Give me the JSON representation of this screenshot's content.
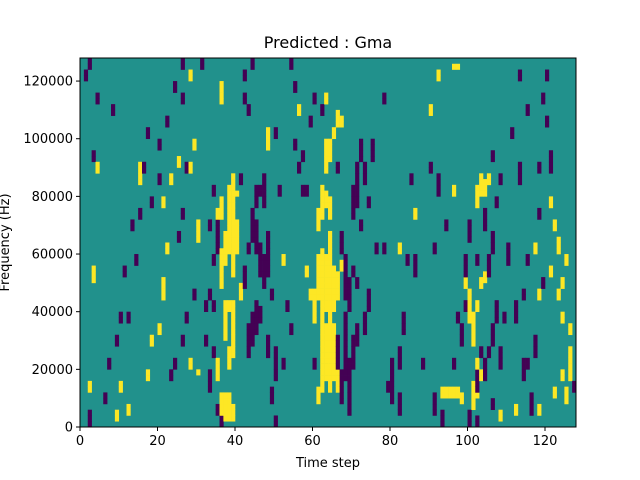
{
  "chart_data": {
    "type": "heatmap",
    "title": "Predicted : Gma",
    "xlabel": "Time step",
    "ylabel": "Frequency (Hz)",
    "xlim": [
      0,
      128
    ],
    "ylim": [
      0,
      128000
    ],
    "xticks": [
      0,
      20,
      40,
      60,
      80,
      100,
      120
    ],
    "yticks": [
      0,
      20000,
      40000,
      60000,
      80000,
      100000,
      120000
    ],
    "grid": false,
    "n_time_steps": 128,
    "n_freq_bins": 64,
    "bin_hz": 2000,
    "levels": {
      "low": -1,
      "mid": 0,
      "high": 1
    },
    "colors": {
      "low": "#440154",
      "mid": "#21918c",
      "high": "#fde725"
    },
    "high_cells": [
      [
        36,
        1,
        6
      ],
      [
        37,
        1,
        6
      ],
      [
        38,
        1,
        6
      ],
      [
        39,
        1,
        4
      ],
      [
        35,
        8,
        12
      ],
      [
        38,
        10,
        14
      ],
      [
        39,
        12,
        22
      ],
      [
        37,
        15,
        22
      ],
      [
        38,
        20,
        22
      ],
      [
        36,
        24,
        31
      ],
      [
        37,
        28,
        34
      ],
      [
        38,
        30,
        39
      ],
      [
        39,
        26,
        38
      ],
      [
        40,
        30,
        36
      ],
      [
        36,
        36,
        40
      ],
      [
        35,
        35,
        38
      ],
      [
        38,
        38,
        42
      ],
      [
        39,
        38,
        44
      ],
      [
        40,
        40,
        41
      ],
      [
        41,
        22,
        25
      ],
      [
        30,
        32,
        36
      ],
      [
        30,
        9,
        10
      ],
      [
        61,
        4,
        7
      ],
      [
        62,
        6,
        20
      ],
      [
        63,
        8,
        18
      ],
      [
        64,
        6,
        21
      ],
      [
        65,
        8,
        18
      ],
      [
        66,
        6,
        10
      ],
      [
        62,
        18,
        31
      ],
      [
        63,
        20,
        30
      ],
      [
        64,
        18,
        34
      ],
      [
        65,
        20,
        28
      ],
      [
        66,
        22,
        27
      ],
      [
        67,
        27,
        29
      ],
      [
        61,
        22,
        30
      ],
      [
        60,
        18,
        24
      ],
      [
        61,
        34,
        38
      ],
      [
        62,
        36,
        42
      ],
      [
        63,
        38,
        41
      ],
      [
        64,
        36,
        40
      ],
      [
        63,
        44,
        50
      ],
      [
        64,
        46,
        50
      ],
      [
        65,
        50,
        52
      ],
      [
        66,
        52,
        55
      ],
      [
        67,
        52,
        54
      ],
      [
        58,
        26,
        28
      ],
      [
        59,
        22,
        24
      ],
      [
        52,
        28,
        30
      ],
      [
        101,
        3,
        8
      ],
      [
        102,
        5,
        12
      ],
      [
        103,
        8,
        10
      ],
      [
        101,
        14,
        20
      ],
      [
        100,
        18,
        24
      ],
      [
        102,
        20,
        22
      ],
      [
        103,
        24,
        26
      ],
      [
        104,
        25,
        27
      ],
      [
        103,
        40,
        44
      ],
      [
        104,
        40,
        43
      ],
      [
        105,
        42,
        44
      ],
      [
        102,
        38,
        42
      ],
      [
        93,
        5,
        7
      ],
      [
        94,
        5,
        7
      ],
      [
        95,
        5,
        7
      ],
      [
        96,
        5,
        7
      ],
      [
        97,
        5,
        7
      ],
      [
        98,
        4,
        6
      ],
      [
        20,
        16,
        18
      ],
      [
        21,
        22,
        26
      ],
      [
        22,
        30,
        32
      ],
      [
        21,
        38,
        40
      ],
      [
        23,
        42,
        44
      ],
      [
        25,
        45,
        47
      ],
      [
        28,
        44,
        46
      ],
      [
        29,
        48,
        50
      ],
      [
        15,
        42,
        44
      ],
      [
        15,
        44,
        46
      ],
      [
        18,
        14,
        16
      ],
      [
        28,
        10,
        12
      ],
      [
        44,
        36,
        38
      ],
      [
        17,
        8,
        10
      ],
      [
        28,
        60,
        62
      ],
      [
        12,
        2,
        4
      ],
      [
        9,
        1,
        3
      ],
      [
        4,
        44,
        46
      ],
      [
        3,
        25,
        28
      ],
      [
        2,
        6,
        8
      ],
      [
        10,
        6,
        8
      ],
      [
        36,
        56,
        60
      ],
      [
        48,
        48,
        52
      ],
      [
        56,
        54,
        56
      ],
      [
        63,
        56,
        58
      ],
      [
        82,
        30,
        32
      ],
      [
        86,
        36,
        38
      ],
      [
        108,
        1,
        3
      ],
      [
        112,
        2,
        4
      ],
      [
        118,
        2,
        4
      ],
      [
        122,
        5,
        7
      ],
      [
        124,
        18,
        20
      ],
      [
        118,
        22,
        24
      ],
      [
        123,
        22,
        24
      ],
      [
        124,
        24,
        26
      ],
      [
        121,
        26,
        28
      ],
      [
        121,
        38,
        40
      ],
      [
        117,
        30,
        32
      ],
      [
        123,
        30,
        33
      ],
      [
        122,
        34,
        36
      ],
      [
        124,
        8,
        10
      ],
      [
        125,
        4,
        7
      ],
      [
        126,
        8,
        14
      ],
      [
        110,
        30,
        32
      ],
      [
        99,
        24,
        26
      ],
      [
        96,
        40,
        42
      ],
      [
        90,
        54,
        56
      ],
      [
        92,
        60,
        62
      ],
      [
        96,
        62,
        63
      ],
      [
        97,
        62,
        63
      ],
      [
        126,
        16,
        18
      ],
      [
        125,
        28,
        30
      ]
    ],
    "low_cells": [
      [
        43,
        12,
        18
      ],
      [
        44,
        14,
        20
      ],
      [
        45,
        16,
        22
      ],
      [
        46,
        18,
        21
      ],
      [
        46,
        26,
        32
      ],
      [
        47,
        24,
        30
      ],
      [
        48,
        26,
        34
      ],
      [
        45,
        30,
        36
      ],
      [
        44,
        32,
        38
      ],
      [
        45,
        38,
        42
      ],
      [
        47,
        38,
        44
      ],
      [
        46,
        40,
        42
      ],
      [
        42,
        24,
        28
      ],
      [
        43,
        30,
        32
      ],
      [
        41,
        42,
        44
      ],
      [
        50,
        8,
        14
      ],
      [
        49,
        22,
        24
      ],
      [
        48,
        12,
        16
      ],
      [
        49,
        4,
        7
      ],
      [
        51,
        40,
        42
      ],
      [
        35,
        30,
        36
      ],
      [
        33,
        6,
        10
      ],
      [
        34,
        12,
        14
      ],
      [
        32,
        14,
        16
      ],
      [
        33,
        22,
        24
      ],
      [
        34,
        20,
        22
      ],
      [
        34,
        28,
        30
      ],
      [
        33,
        34,
        36
      ],
      [
        66,
        10,
        16
      ],
      [
        67,
        4,
        10
      ],
      [
        68,
        8,
        20
      ],
      [
        69,
        2,
        12
      ],
      [
        70,
        10,
        16
      ],
      [
        71,
        14,
        18
      ],
      [
        68,
        22,
        30
      ],
      [
        69,
        20,
        26
      ],
      [
        67,
        30,
        34
      ],
      [
        70,
        36,
        42
      ],
      [
        71,
        38,
        46
      ],
      [
        72,
        34,
        36
      ],
      [
        70,
        26,
        28
      ],
      [
        72,
        46,
        50
      ],
      [
        71,
        24,
        26
      ],
      [
        73,
        16,
        20
      ],
      [
        74,
        20,
        24
      ],
      [
        73,
        42,
        46
      ],
      [
        75,
        46,
        50
      ],
      [
        74,
        38,
        40
      ],
      [
        76,
        30,
        32
      ],
      [
        78,
        30,
        32
      ],
      [
        79,
        6,
        8
      ],
      [
        80,
        4,
        12
      ],
      [
        82,
        2,
        6
      ],
      [
        82,
        10,
        14
      ],
      [
        83,
        16,
        20
      ],
      [
        84,
        28,
        30
      ],
      [
        85,
        42,
        44
      ],
      [
        86,
        26,
        30
      ],
      [
        88,
        10,
        12
      ],
      [
        91,
        30,
        32
      ],
      [
        91,
        2,
        6
      ],
      [
        94,
        34,
        36
      ],
      [
        96,
        10,
        12
      ],
      [
        97,
        18,
        20
      ],
      [
        98,
        14,
        18
      ],
      [
        99,
        20,
        22
      ],
      [
        99,
        26,
        30
      ],
      [
        100,
        32,
        36
      ],
      [
        102,
        6,
        10
      ],
      [
        104,
        8,
        12
      ],
      [
        105,
        12,
        14
      ],
      [
        106,
        14,
        18
      ],
      [
        107,
        18,
        22
      ],
      [
        108,
        10,
        14
      ],
      [
        109,
        18,
        20
      ],
      [
        110,
        28,
        32
      ],
      [
        105,
        26,
        30
      ],
      [
        106,
        30,
        34
      ],
      [
        104,
        34,
        38
      ],
      [
        103,
        12,
        14
      ],
      [
        102,
        28,
        30
      ],
      [
        107,
        38,
        40
      ],
      [
        108,
        42,
        44
      ],
      [
        106,
        46,
        48
      ],
      [
        100,
        0,
        3
      ],
      [
        102,
        0,
        2
      ],
      [
        116,
        2,
        6
      ],
      [
        114,
        8,
        12
      ],
      [
        115,
        10,
        12
      ],
      [
        117,
        12,
        16
      ],
      [
        112,
        18,
        22
      ],
      [
        114,
        22,
        24
      ],
      [
        115,
        28,
        30
      ],
      [
        119,
        24,
        26
      ],
      [
        118,
        36,
        38
      ],
      [
        118,
        44,
        46
      ],
      [
        121,
        44,
        48
      ],
      [
        120,
        52,
        54
      ],
      [
        120,
        60,
        62
      ],
      [
        119,
        56,
        58
      ],
      [
        113,
        60,
        62
      ],
      [
        115,
        54,
        56
      ],
      [
        111,
        50,
        52
      ],
      [
        113,
        42,
        46
      ],
      [
        127,
        6,
        8
      ],
      [
        106,
        3,
        5
      ],
      [
        93,
        0,
        3
      ],
      [
        92,
        40,
        44
      ],
      [
        90,
        44,
        46
      ],
      [
        78,
        56,
        58
      ],
      [
        66,
        44,
        46
      ],
      [
        58,
        40,
        42
      ],
      [
        57,
        46,
        48
      ],
      [
        55,
        48,
        50
      ],
      [
        50,
        50,
        52
      ],
      [
        42,
        56,
        58
      ],
      [
        42,
        60,
        62
      ],
      [
        43,
        54,
        56
      ],
      [
        44,
        62,
        64
      ],
      [
        54,
        62,
        64
      ],
      [
        55,
        58,
        60
      ],
      [
        29,
        22,
        24
      ],
      [
        27,
        18,
        20
      ],
      [
        26,
        14,
        16
      ],
      [
        24,
        10,
        12
      ],
      [
        23,
        8,
        10
      ],
      [
        25,
        32,
        34
      ],
      [
        26,
        36,
        38
      ],
      [
        27,
        44,
        46
      ],
      [
        26,
        56,
        58
      ],
      [
        20,
        48,
        50
      ],
      [
        18,
        38,
        40
      ],
      [
        15,
        36,
        38
      ],
      [
        13,
        34,
        36
      ],
      [
        11,
        26,
        28
      ],
      [
        10,
        18,
        20
      ],
      [
        9,
        14,
        16
      ],
      [
        7,
        10,
        12
      ],
      [
        6,
        4,
        6
      ],
      [
        2,
        0,
        3
      ],
      [
        8,
        54,
        56
      ],
      [
        1,
        60,
        62
      ],
      [
        2,
        62,
        64
      ],
      [
        4,
        56,
        58
      ],
      [
        3,
        46,
        48
      ],
      [
        12,
        18,
        20
      ],
      [
        14,
        28,
        30
      ],
      [
        16,
        44,
        46
      ],
      [
        17,
        50,
        52
      ],
      [
        20,
        42,
        44
      ],
      [
        22,
        52,
        54
      ],
      [
        24,
        58,
        60
      ],
      [
        26,
        62,
        64
      ],
      [
        32,
        20,
        22
      ],
      [
        35,
        2,
        4
      ],
      [
        34,
        40,
        42
      ],
      [
        31,
        62,
        64
      ],
      [
        36,
        0,
        2
      ],
      [
        56,
        44,
        46
      ],
      [
        57,
        40,
        42
      ],
      [
        53,
        20,
        22
      ],
      [
        54,
        16,
        18
      ],
      [
        52,
        10,
        12
      ],
      [
        50,
        0,
        2
      ],
      [
        60,
        10,
        12
      ],
      [
        59,
        52,
        54
      ],
      [
        60,
        56,
        58
      ],
      [
        62,
        54,
        56
      ]
    ]
  }
}
